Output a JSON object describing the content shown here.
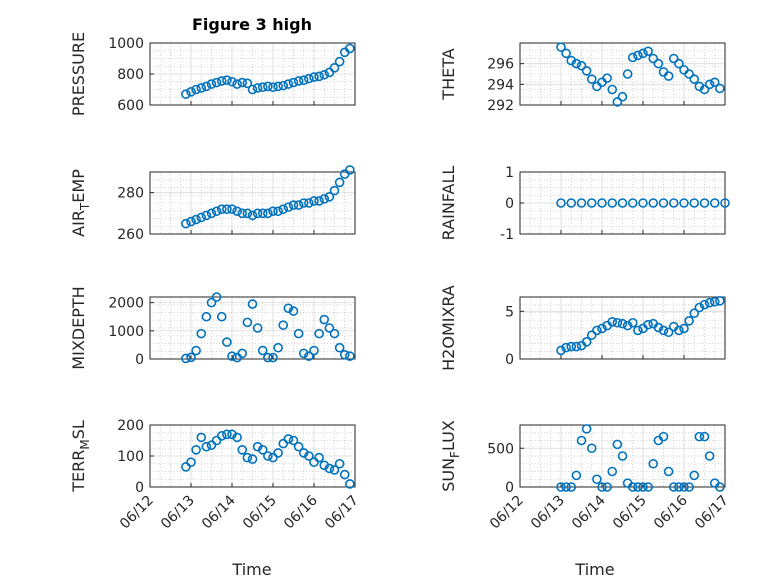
{
  "colors": {
    "marker": "#0072BD",
    "axis": "#262626",
    "grid": "#c8c8c8"
  },
  "title": "Figure 3 high",
  "xlabel": "Time",
  "date_ticks": [
    "06/12",
    "06/13",
    "06/14",
    "06/15",
    "06/16",
    "06/17"
  ],
  "chart_data": [
    {
      "type": "scatter",
      "ylabel": "PRESSURE",
      "xlim": [
        "06/12",
        "06/17"
      ],
      "ylim": [
        600,
        1000
      ],
      "yticks": [
        "600",
        "800",
        "1000"
      ],
      "grid": true,
      "series": [
        {
          "x": [
            "06/12 21:00",
            "06/13 00:00",
            "06/13 03:00",
            "06/13 06:00",
            "06/13 09:00",
            "06/13 12:00",
            "06/13 15:00",
            "06/13 18:00",
            "06/13 21:00",
            "06/14 00:00",
            "06/14 03:00",
            "06/14 06:00",
            "06/14 09:00",
            "06/14 12:00",
            "06/14 15:00",
            "06/14 18:00",
            "06/14 21:00",
            "06/15 00:00",
            "06/15 03:00",
            "06/15 06:00",
            "06/15 09:00",
            "06/15 12:00",
            "06/15 15:00",
            "06/15 18:00",
            "06/15 21:00",
            "06/16 00:00",
            "06/16 03:00",
            "06/16 06:00",
            "06/16 09:00",
            "06/16 12:00",
            "06/16 15:00",
            "06/16 18:00",
            "06/16 21:00"
          ],
          "y": [
            670,
            685,
            700,
            710,
            720,
            735,
            745,
            755,
            760,
            750,
            735,
            745,
            740,
            700,
            710,
            715,
            720,
            715,
            720,
            725,
            735,
            745,
            755,
            760,
            770,
            780,
            785,
            795,
            810,
            840,
            880,
            940,
            965
          ]
        }
      ]
    },
    {
      "type": "scatter",
      "ylabel": "THETA",
      "xlim": [
        "06/12",
        "06/17"
      ],
      "ylim": [
        292,
        298
      ],
      "yticks": [
        "292",
        "294",
        "296"
      ],
      "grid": true,
      "series": [
        {
          "x": [
            "06/13 00:00",
            "06/13 03:00",
            "06/13 06:00",
            "06/13 09:00",
            "06/13 12:00",
            "06/13 15:00",
            "06/13 18:00",
            "06/13 21:00",
            "06/14 00:00",
            "06/14 03:00",
            "06/14 06:00",
            "06/14 09:00",
            "06/14 12:00",
            "06/14 15:00",
            "06/14 18:00",
            "06/14 21:00",
            "06/15 00:00",
            "06/15 03:00",
            "06/15 06:00",
            "06/15 09:00",
            "06/15 12:00",
            "06/15 15:00",
            "06/15 18:00",
            "06/15 21:00",
            "06/16 00:00",
            "06/16 03:00",
            "06/16 06:00",
            "06/16 09:00",
            "06/16 12:00",
            "06/16 15:00",
            "06/16 18:00",
            "06/16 21:00"
          ],
          "y": [
            297.6,
            297.0,
            296.3,
            296.0,
            295.8,
            295.3,
            294.5,
            293.8,
            294.2,
            294.6,
            293.5,
            292.3,
            292.8,
            295.0,
            296.6,
            296.8,
            297.0,
            297.2,
            296.5,
            296.0,
            295.2,
            294.8,
            296.5,
            296.0,
            295.4,
            295.0,
            294.5,
            293.8,
            293.5,
            294.0,
            294.2,
            293.6
          ]
        }
      ]
    },
    {
      "type": "scatter",
      "ylabel": "AIR_TEMP",
      "xlim": [
        "06/12",
        "06/17"
      ],
      "ylim": [
        260,
        290
      ],
      "yticks": [
        "260",
        "280"
      ],
      "grid": true,
      "series": [
        {
          "x": [
            "06/12 21:00",
            "06/13 00:00",
            "06/13 03:00",
            "06/13 06:00",
            "06/13 09:00",
            "06/13 12:00",
            "06/13 15:00",
            "06/13 18:00",
            "06/13 21:00",
            "06/14 00:00",
            "06/14 03:00",
            "06/14 06:00",
            "06/14 09:00",
            "06/14 12:00",
            "06/14 15:00",
            "06/14 18:00",
            "06/14 21:00",
            "06/15 00:00",
            "06/15 03:00",
            "06/15 06:00",
            "06/15 09:00",
            "06/15 12:00",
            "06/15 15:00",
            "06/15 18:00",
            "06/15 21:00",
            "06/16 00:00",
            "06/16 03:00",
            "06/16 06:00",
            "06/16 09:00",
            "06/16 12:00",
            "06/16 15:00",
            "06/16 18:00",
            "06/16 21:00"
          ],
          "y": [
            265,
            266,
            267,
            268,
            269,
            270,
            271,
            272,
            272,
            272,
            271,
            270,
            270,
            269,
            270,
            270,
            270,
            271,
            271,
            272,
            273,
            274,
            274,
            275,
            275,
            276,
            276,
            277,
            278,
            281,
            285,
            289,
            291
          ]
        }
      ]
    },
    {
      "type": "scatter",
      "ylabel": "RAINFALL",
      "xlim": [
        "06/12",
        "06/17"
      ],
      "ylim": [
        -1,
        1
      ],
      "yticks": [
        "-1",
        "0",
        "1"
      ],
      "grid": true,
      "series": [
        {
          "x": [
            "06/13 00:00",
            "06/13 06:00",
            "06/13 12:00",
            "06/13 18:00",
            "06/14 00:00",
            "06/14 06:00",
            "06/14 12:00",
            "06/14 18:00",
            "06/15 00:00",
            "06/15 06:00",
            "06/15 12:00",
            "06/15 18:00",
            "06/16 00:00",
            "06/16 06:00",
            "06/16 12:00",
            "06/16 18:00",
            "06/17 00:00"
          ],
          "y": [
            0,
            0,
            0,
            0,
            0,
            0,
            0,
            0,
            0,
            0,
            0,
            0,
            0,
            0,
            0,
            0,
            0
          ]
        }
      ]
    },
    {
      "type": "scatter",
      "ylabel": "MIXDEPTH",
      "xlim": [
        "06/12",
        "06/17"
      ],
      "ylim": [
        0,
        2200
      ],
      "yticks": [
        "0",
        "1000",
        "2000"
      ],
      "grid": true,
      "series": [
        {
          "x": [
            "06/12 21:00",
            "06/13 00:00",
            "06/13 03:00",
            "06/13 06:00",
            "06/13 09:00",
            "06/13 12:00",
            "06/13 15:00",
            "06/13 18:00",
            "06/13 21:00",
            "06/14 00:00",
            "06/14 03:00",
            "06/14 06:00",
            "06/14 09:00",
            "06/14 12:00",
            "06/14 15:00",
            "06/14 18:00",
            "06/14 21:00",
            "06/15 00:00",
            "06/15 03:00",
            "06/15 06:00",
            "06/15 09:00",
            "06/15 12:00",
            "06/15 15:00",
            "06/15 18:00",
            "06/15 21:00",
            "06/16 00:00",
            "06/16 03:00",
            "06/16 06:00",
            "06/16 09:00",
            "06/16 12:00",
            "06/16 15:00",
            "06/16 18:00",
            "06/16 21:00"
          ],
          "y": [
            20,
            60,
            300,
            900,
            1500,
            2000,
            2200,
            1500,
            600,
            100,
            50,
            200,
            1300,
            1950,
            1100,
            300,
            50,
            50,
            400,
            1200,
            1800,
            1700,
            900,
            200,
            100,
            300,
            900,
            1400,
            1100,
            900,
            400,
            150,
            100
          ]
        }
      ]
    },
    {
      "type": "scatter",
      "ylabel": "H2OMIXRA",
      "xlim": [
        "06/12",
        "06/17"
      ],
      "ylim": [
        0,
        6.5
      ],
      "yticks": [
        "0",
        "5"
      ],
      "grid": true,
      "series": [
        {
          "x": [
            "06/13 00:00",
            "06/13 03:00",
            "06/13 06:00",
            "06/13 09:00",
            "06/13 12:00",
            "06/13 15:00",
            "06/13 18:00",
            "06/13 21:00",
            "06/14 00:00",
            "06/14 03:00",
            "06/14 06:00",
            "06/14 09:00",
            "06/14 12:00",
            "06/14 15:00",
            "06/14 18:00",
            "06/14 21:00",
            "06/15 00:00",
            "06/15 03:00",
            "06/15 06:00",
            "06/15 09:00",
            "06/15 12:00",
            "06/15 15:00",
            "06/15 18:00",
            "06/15 21:00",
            "06/16 00:00",
            "06/16 03:00",
            "06/16 06:00",
            "06/16 09:00",
            "06/16 12:00",
            "06/16 15:00",
            "06/16 18:00",
            "06/16 21:00"
          ],
          "y": [
            0.9,
            1.2,
            1.3,
            1.3,
            1.4,
            1.8,
            2.5,
            3.0,
            3.2,
            3.5,
            3.9,
            3.8,
            3.7,
            3.5,
            3.8,
            3.0,
            3.2,
            3.6,
            3.7,
            3.3,
            3.0,
            2.8,
            3.4,
            3.0,
            3.2,
            4.0,
            4.8,
            5.4,
            5.7,
            5.9,
            6.0,
            6.1
          ]
        }
      ]
    },
    {
      "type": "scatter",
      "ylabel": "TERR_MSL",
      "xlim": [
        "06/12",
        "06/17"
      ],
      "ylim": [
        0,
        200
      ],
      "yticks": [
        "0",
        "100",
        "200"
      ],
      "grid": true,
      "series": [
        {
          "x": [
            "06/12 21:00",
            "06/13 00:00",
            "06/13 03:00",
            "06/13 06:00",
            "06/13 09:00",
            "06/13 12:00",
            "06/13 15:00",
            "06/13 18:00",
            "06/13 21:00",
            "06/14 00:00",
            "06/14 03:00",
            "06/14 06:00",
            "06/14 09:00",
            "06/14 12:00",
            "06/14 15:00",
            "06/14 18:00",
            "06/14 21:00",
            "06/15 00:00",
            "06/15 03:00",
            "06/15 06:00",
            "06/15 09:00",
            "06/15 12:00",
            "06/15 15:00",
            "06/15 18:00",
            "06/15 21:00",
            "06/16 00:00",
            "06/16 03:00",
            "06/16 06:00",
            "06/16 09:00",
            "06/16 12:00",
            "06/16 15:00",
            "06/16 18:00",
            "06/16 21:00"
          ],
          "y": [
            65,
            80,
            120,
            160,
            130,
            135,
            150,
            165,
            170,
            170,
            160,
            120,
            95,
            90,
            130,
            120,
            100,
            95,
            110,
            140,
            155,
            150,
            130,
            110,
            100,
            80,
            95,
            70,
            60,
            55,
            75,
            40,
            10
          ]
        }
      ]
    },
    {
      "type": "scatter",
      "ylabel": "SUN_FLUX",
      "xlim": [
        "06/12",
        "06/17"
      ],
      "ylim": [
        0,
        800
      ],
      "yticks": [
        "0",
        "500"
      ],
      "grid": true,
      "series": [
        {
          "x": [
            "06/13 00:00",
            "06/13 03:00",
            "06/13 06:00",
            "06/13 09:00",
            "06/13 12:00",
            "06/13 15:00",
            "06/13 18:00",
            "06/13 21:00",
            "06/14 00:00",
            "06/14 03:00",
            "06/14 06:00",
            "06/14 09:00",
            "06/14 12:00",
            "06/14 15:00",
            "06/14 18:00",
            "06/14 21:00",
            "06/15 00:00",
            "06/15 03:00",
            "06/15 06:00",
            "06/15 09:00",
            "06/15 12:00",
            "06/15 15:00",
            "06/15 18:00",
            "06/15 21:00",
            "06/16 00:00",
            "06/16 03:00",
            "06/16 06:00",
            "06/16 09:00",
            "06/16 12:00",
            "06/16 15:00",
            "06/16 18:00",
            "06/16 21:00"
          ],
          "y": [
            0,
            0,
            0,
            150,
            600,
            750,
            500,
            100,
            0,
            0,
            200,
            550,
            400,
            50,
            0,
            0,
            0,
            0,
            300,
            600,
            650,
            200,
            0,
            0,
            0,
            0,
            150,
            650,
            650,
            400,
            50,
            0
          ]
        }
      ]
    }
  ]
}
